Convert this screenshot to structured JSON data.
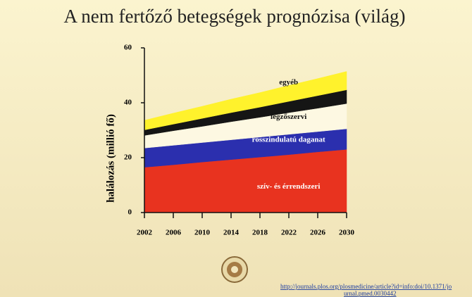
{
  "chart_data": {
    "type": "stacked_area",
    "title": "A nem fertőző betegségek prognózisa (világ)",
    "y_label": "halálozás (millió fő)",
    "x": [
      2002,
      2006,
      2010,
      2014,
      2018,
      2022,
      2026,
      2030
    ],
    "series": [
      {
        "name": "szív- és érrendszeri",
        "color": "#e8331f",
        "values": [
          16.5,
          17.4,
          18.4,
          19.3,
          20.2,
          21.1,
          22.1,
          23.0
        ]
      },
      {
        "name": "rosszindulatú daganat",
        "color": "#2b2fae",
        "values": [
          7.0,
          7.1,
          7.1,
          7.2,
          7.3,
          7.4,
          7.4,
          7.5
        ]
      },
      {
        "name": "légzőszervi",
        "color": "#fdf8e2",
        "values": [
          4.6,
          5.3,
          5.9,
          6.6,
          7.2,
          7.9,
          8.5,
          9.2
        ]
      },
      {
        "color": "#151515",
        "values": [
          2.0,
          2.4,
          2.9,
          3.3,
          3.7,
          4.1,
          4.6,
          5.0
        ]
      },
      {
        "name": "egyéb",
        "color": "#fff22c",
        "values": [
          3.5,
          4.0,
          4.4,
          4.9,
          5.3,
          5.8,
          6.2,
          6.7
        ]
      }
    ],
    "xlim": [
      2002,
      2030
    ],
    "xticks": [
      2002,
      2006,
      2010,
      2014,
      2018,
      2022,
      2026,
      2030
    ],
    "ylim": [
      0,
      60
    ],
    "yticks": [
      0,
      20,
      40,
      60
    ],
    "source": [
      "http://journals.plos.org/plosmedicine/article?id=info:doi/10.1371/jo",
      "urnal.pmed.0030442"
    ]
  }
}
